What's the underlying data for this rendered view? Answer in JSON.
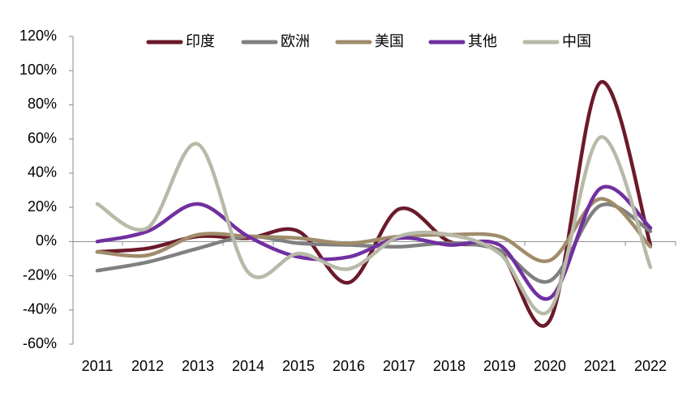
{
  "chart_data": {
    "type": "line",
    "smooth": true,
    "x": [
      2011,
      2012,
      2013,
      2014,
      2015,
      2016,
      2017,
      2018,
      2019,
      2020,
      2021,
      2022
    ],
    "series": [
      {
        "name": "印度",
        "color": "#6b1a2a",
        "values": [
          -6,
          -4,
          3,
          2,
          6,
          -24,
          19,
          0,
          -6,
          -46,
          93,
          -2
        ]
      },
      {
        "name": "欧洲",
        "color": "#808080",
        "values": [
          -17,
          -12,
          -4,
          3,
          -1,
          -2,
          -3,
          -1,
          -5,
          -23,
          21,
          6
        ]
      },
      {
        "name": "美国",
        "color": "#a08c6a",
        "values": [
          -6,
          -8,
          4,
          3,
          2,
          -1,
          3,
          4,
          3,
          -11,
          25,
          -3
        ]
      },
      {
        "name": "其他",
        "color": "#7030a0",
        "values": [
          0,
          6,
          22,
          3,
          -9,
          -9,
          2,
          -2,
          -2,
          -33,
          31,
          8
        ]
      },
      {
        "name": "中国",
        "color": "#b8baa8",
        "values": [
          22,
          8,
          57,
          -18,
          -7,
          -16,
          3,
          4,
          -7,
          -40,
          61,
          -15
        ]
      }
    ],
    "ylim": [
      -60,
      120
    ],
    "yticks": [
      {
        "value": -60,
        "label": "-60%"
      },
      {
        "value": -40,
        "label": "-40%"
      },
      {
        "value": -20,
        "label": "-20%"
      },
      {
        "value": 0,
        "label": "0%"
      },
      {
        "value": 20,
        "label": "20%"
      },
      {
        "value": 40,
        "label": "40%"
      },
      {
        "value": 60,
        "label": "60%"
      },
      {
        "value": 80,
        "label": "80%"
      },
      {
        "value": 100,
        "label": "100%"
      },
      {
        "value": 120,
        "label": "120%"
      }
    ],
    "legend": "top"
  }
}
